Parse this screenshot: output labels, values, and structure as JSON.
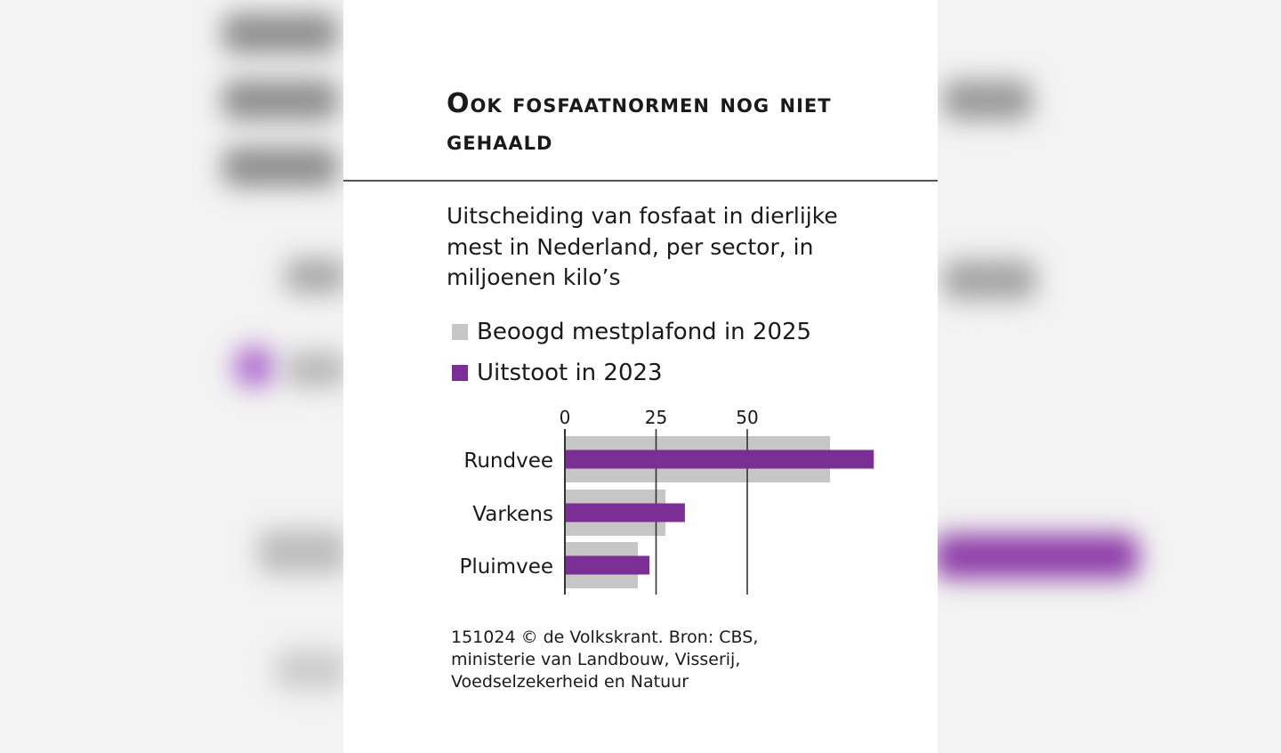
{
  "chart_data": {
    "type": "bar",
    "orientation": "horizontal",
    "title": "Ook fosfaatnormen nog niet gehaald",
    "subtitle": "Uitscheiding van fosfaat in dierlijke mest in Nederland, per sector, in miljoenen kilo’s",
    "categories": [
      "Rundvee",
      "Varkens",
      "Pluimvee"
    ],
    "series": [
      {
        "name": "Beoogd mestplafond in 2025",
        "values": [
          72.7,
          27.6,
          20.0
        ]
      },
      {
        "name": "Uitstoot in 2023",
        "values": [
          84.7,
          32.9,
          23.2
        ]
      }
    ],
    "x_ticks": [
      "0",
      "25",
      "50"
    ],
    "xlim": [
      0,
      85
    ],
    "grid": true,
    "legend": "top-left",
    "source": "151024 © de Volkskrant. Bron: CBS, ministerie van Landbouw, Visserij, Voedselzekerheid en Natuur"
  },
  "colors": {
    "plafond": "#c6c6c6",
    "uitstoot": "#7b2f95",
    "text": "#1a1a1a",
    "axis": "#333333"
  }
}
